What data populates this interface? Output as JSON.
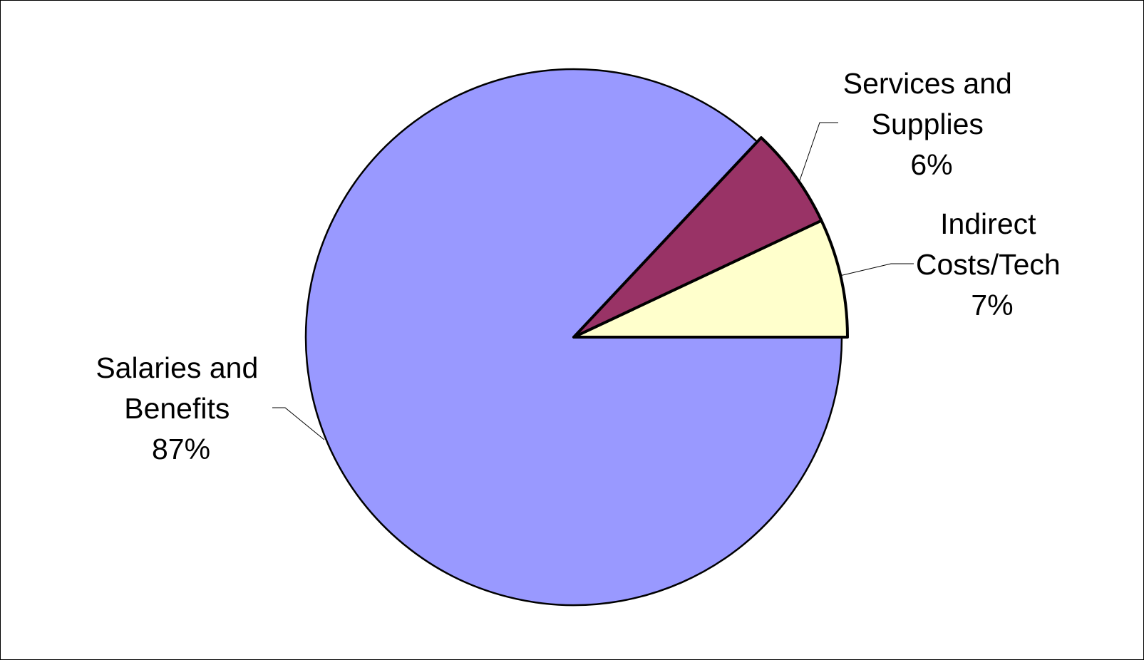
{
  "chart_data": {
    "type": "pie",
    "title": "",
    "slices": [
      {
        "name": "Indirect Costs/Tech",
        "label_lines": [
          "Indirect",
          "Costs/Tech"
        ],
        "value": 7,
        "value_label": "7%",
        "color": "#FFFFCC"
      },
      {
        "name": "Services and Supplies",
        "label_lines": [
          "Services and",
          "Supplies"
        ],
        "value": 6,
        "value_label": "6%",
        "color": "#993366"
      },
      {
        "name": "Salaries and Benefits",
        "label_lines": [
          "Salaries and",
          "Benefits"
        ],
        "value": 87,
        "value_label": "87%",
        "color": "#9999FF"
      }
    ],
    "start_angle_deg": 0,
    "direction": "counterclockwise",
    "exploded_slices": [
      "Indirect Costs/Tech",
      "Services and Supplies"
    ],
    "legend": "none"
  }
}
